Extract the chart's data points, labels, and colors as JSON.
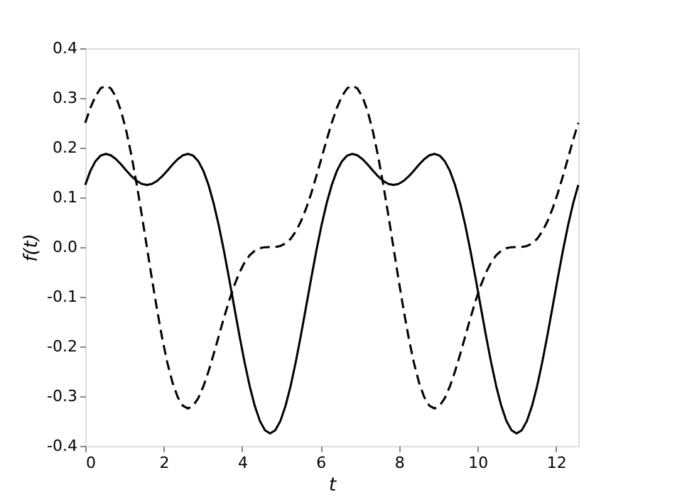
{
  "chart_data": {
    "type": "line",
    "xlabel": "t",
    "ylabel": "f(t)",
    "x": [
      0,
      0.131,
      0.262,
      0.393,
      0.524,
      0.654,
      0.785,
      0.916,
      1.047,
      1.178,
      1.309,
      1.44,
      1.571,
      1.702,
      1.833,
      1.963,
      2.094,
      2.225,
      2.356,
      2.487,
      2.618,
      2.749,
      2.88,
      3.011,
      3.142,
      3.272,
      3.403,
      3.534,
      3.665,
      3.796,
      3.927,
      4.058,
      4.189,
      4.32,
      4.451,
      4.581,
      4.712,
      4.843,
      4.974,
      5.105,
      5.236,
      5.367,
      5.498,
      5.629,
      5.76,
      5.89,
      6.021,
      6.152,
      6.283,
      6.414,
      6.545,
      6.676,
      6.807,
      6.937,
      7.069,
      7.199,
      7.33,
      7.461,
      7.592,
      7.723,
      7.854,
      7.985,
      8.116,
      8.247,
      8.378,
      8.508,
      8.639,
      8.77,
      8.901,
      9.032,
      9.163,
      9.294,
      9.425,
      9.556,
      9.687,
      9.817,
      9.948,
      10.079,
      10.21,
      10.341,
      10.472,
      10.603,
      10.734,
      10.865,
      10.996,
      11.126,
      11.257,
      11.388,
      11.519,
      11.65,
      11.781,
      11.912,
      12.043,
      12.174,
      12.305,
      12.435,
      12.566
    ],
    "series": [
      {
        "color": "#000000",
        "line_style": "solid",
        "values": [
          0.125,
          0.1534,
          0.173,
          0.1841,
          0.1875,
          0.1846,
          0.1768,
          0.166,
          0.154,
          0.1426,
          0.1332,
          0.1271,
          0.125,
          0.1271,
          0.1332,
          0.1426,
          0.154,
          0.166,
          0.1768,
          0.1846,
          0.1875,
          0.1841,
          0.173,
          0.1534,
          0.125,
          0.0881,
          0.0436,
          -0.0073,
          -0.0625,
          -0.1198,
          -0.1768,
          -0.2308,
          -0.279,
          -0.3194,
          -0.3498,
          -0.3686,
          -0.375,
          -0.3686,
          -0.3498,
          -0.3194,
          -0.279,
          -0.2308,
          -0.1768,
          -0.1198,
          -0.0625,
          -0.0073,
          0.0436,
          0.0881,
          0.125,
          0.1534,
          0.173,
          0.1841,
          0.1875,
          0.1846,
          0.1768,
          0.166,
          0.154,
          0.1426,
          0.1332,
          0.1271,
          0.125,
          0.1271,
          0.1332,
          0.1426,
          0.154,
          0.166,
          0.1768,
          0.1846,
          0.1875,
          0.1841,
          0.173,
          0.1534,
          0.125,
          0.0881,
          0.0436,
          -0.0073,
          -0.0625,
          -0.1198,
          -0.1768,
          -0.2308,
          -0.279,
          -0.3194,
          -0.3498,
          -0.3686,
          -0.375,
          -0.3686,
          -0.3498,
          -0.3194,
          -0.279,
          -0.2308,
          -0.1768,
          -0.1198,
          -0.0625,
          -0.0073,
          0.0436,
          0.0881,
          0.125
        ]
      },
      {
        "color": "#000000",
        "line_style": "dashed",
        "values": [
          0.25,
          0.2802,
          0.304,
          0.3194,
          0.3248,
          0.3191,
          0.3018,
          0.2729,
          0.2333,
          0.1841,
          0.1272,
          0.065,
          0,
          -0.065,
          -0.1272,
          -0.1841,
          -0.2333,
          -0.2729,
          -0.3018,
          -0.3191,
          -0.3248,
          -0.3194,
          -0.304,
          -0.2802,
          -0.25,
          -0.2155,
          -0.179,
          -0.1426,
          -0.1082,
          -0.0777,
          -0.0518,
          -0.0315,
          -0.0167,
          -0.0073,
          -0.0022,
          -0.0002,
          0,
          0.0002,
          0.0022,
          0.0073,
          0.0167,
          0.0315,
          0.0518,
          0.0777,
          0.1082,
          0.1426,
          0.179,
          0.2155,
          0.25,
          0.2802,
          0.304,
          0.3194,
          0.3248,
          0.3191,
          0.3018,
          0.2729,
          0.2333,
          0.1841,
          0.1272,
          0.065,
          0,
          -0.065,
          -0.1272,
          -0.1841,
          -0.2333,
          -0.2729,
          -0.3018,
          -0.3191,
          -0.3248,
          -0.3194,
          -0.304,
          -0.2802,
          -0.25,
          -0.2155,
          -0.179,
          -0.1426,
          -0.1082,
          -0.0777,
          -0.0518,
          -0.0315,
          -0.0167,
          -0.0073,
          -0.0022,
          -0.0002,
          0,
          0.0002,
          0.0022,
          0.0073,
          0.0167,
          0.0315,
          0.0518,
          0.0777,
          0.1082,
          0.1426,
          0.179,
          0.2155,
          0.25
        ]
      }
    ],
    "xlim": [
      0,
      12.566
    ],
    "xticks": [
      0,
      2,
      4,
      6,
      8,
      10,
      12
    ],
    "ylim": [
      -0.4,
      0.4
    ],
    "yticks": [
      -0.4,
      -0.3,
      -0.2,
      -0.1,
      {
        "value": 0,
        "label": "0.0"
      },
      0.1,
      0.2,
      0.3,
      0.4
    ],
    "grid": false,
    "marker": "none"
  }
}
